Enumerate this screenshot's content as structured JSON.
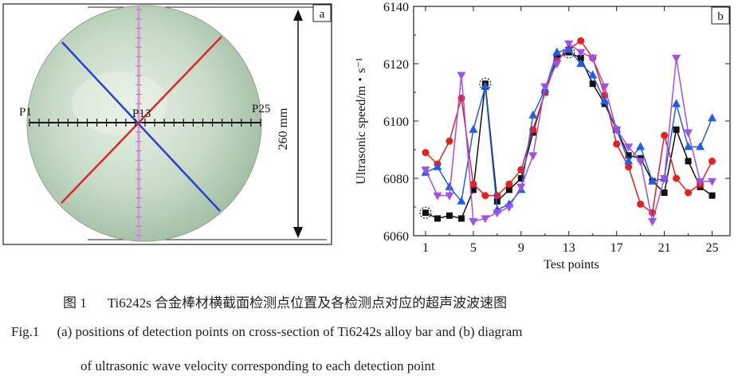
{
  "panel_a": {
    "label": "a",
    "p_first": "P1",
    "p_mid": "P13",
    "p_last": "P25",
    "dimension": "260 mm"
  },
  "panel_b": {
    "label": "b"
  },
  "chart_data": {
    "type": "line",
    "xlabel": "Test points",
    "ylabel": "Ultrasonic speed/m・s⁻¹",
    "xlim": [
      0,
      26.5
    ],
    "ylim": [
      6060,
      6140
    ],
    "xticks": [
      1,
      5,
      9,
      13,
      17,
      21,
      25
    ],
    "yticks": [
      6060,
      6080,
      6100,
      6120,
      6140
    ],
    "x": [
      1,
      2,
      3,
      4,
      5,
      6,
      7,
      8,
      9,
      10,
      11,
      12,
      13,
      14,
      15,
      16,
      17,
      18,
      19,
      20,
      21,
      22,
      23,
      24,
      25
    ],
    "series": [
      {
        "marker": "square",
        "color": "#111111",
        "values": [
          6068,
          6066,
          6067,
          6066,
          6076,
          6113,
          6072,
          6076,
          6080,
          6096,
          6110,
          6122,
          6124,
          6122,
          6113,
          6106,
          6097,
          6088,
          6087,
          6079,
          6075,
          6097,
          6086,
          6077,
          6074
        ]
      },
      {
        "marker": "circle",
        "color": "#e82020",
        "values": [
          6089,
          6085,
          6093,
          6108,
          6078,
          6074,
          6074,
          6078,
          6083,
          6097,
          6110,
          6121,
          6125,
          6128,
          6122,
          6109,
          6092,
          6084,
          6071,
          6068,
          6095,
          6080,
          6075,
          6078,
          6086
        ]
      },
      {
        "marker": "triangle-up",
        "color": "#1e5ee8",
        "values": [
          6082,
          6084,
          6077,
          6072,
          6097,
          6112,
          6069,
          6071,
          6076,
          6102,
          6111,
          6124,
          6125,
          6120,
          6116,
          6107,
          6097,
          6086,
          6091,
          6079,
          6080,
          6106,
          6091,
          6091,
          6101
        ]
      },
      {
        "marker": "triangle-down",
        "color": "#a050e8",
        "values": [
          6083,
          6074,
          6074,
          6116,
          6065,
          6066,
          6068,
          6070,
          6077,
          6088,
          6112,
          6120,
          6127,
          6124,
          6122,
          6112,
          6097,
          6091,
          6086,
          6065,
          6080,
          6122,
          6096,
          6079,
          6079
        ]
      }
    ],
    "highlighted": [
      {
        "x": 1,
        "y": 6068
      },
      {
        "x": 6,
        "y": 6113
      },
      {
        "x": 13,
        "y": 6124
      }
    ]
  },
  "caption": {
    "cn_num": "图 1",
    "cn_text": "Ti6242s 合金棒材横截面检测点位置及各检测点对应的超声波波速图",
    "en_num": "Fig.1",
    "en_line1": "(a) positions of detection points on cross-section of Ti6242s alloy bar and (b) diagram",
    "en_line2": "of ultrasonic wave velocity corresponding to each detection point"
  }
}
